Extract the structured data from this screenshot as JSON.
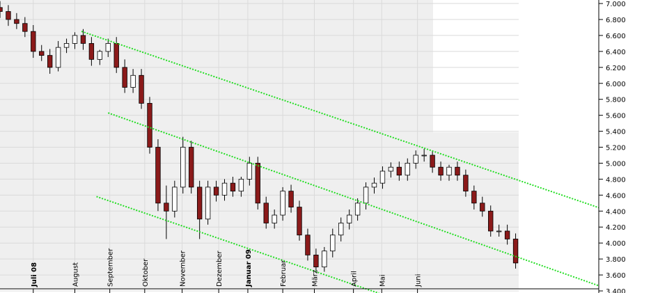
{
  "chart_data": {
    "type": "candlestick",
    "x": [
      0,
      1,
      2,
      3,
      4,
      5,
      6,
      7,
      8,
      9,
      10,
      11,
      12,
      13,
      14,
      15,
      16,
      17,
      18,
      19,
      20,
      21,
      22,
      23,
      24,
      25,
      26,
      27,
      28,
      29,
      30,
      31,
      32,
      33,
      34,
      35,
      36,
      37,
      38,
      39,
      40,
      41,
      42,
      43,
      44,
      45,
      46,
      47,
      48,
      49,
      50,
      51,
      52,
      53,
      54,
      55,
      56,
      57,
      58,
      59,
      60,
      61,
      62
    ],
    "open": [
      6950,
      6900,
      6800,
      6750,
      6650,
      6400,
      6350,
      6200,
      6450,
      6500,
      6600,
      6500,
      6300,
      6400,
      6500,
      6200,
      5950,
      6100,
      5750,
      5200,
      4500,
      4400,
      4700,
      5200,
      4700,
      4300,
      4700,
      4600,
      4750,
      4650,
      4800,
      5000,
      4500,
      4250,
      4350,
      4650,
      4450,
      4100,
      3850,
      3700,
      3900,
      4100,
      4250,
      4350,
      4500,
      4700,
      4750,
      4900,
      4950,
      4850,
      5000,
      5100,
      5100,
      4950,
      4850,
      4950,
      4850,
      4650,
      4500,
      4400,
      4150,
      4150,
      4050
    ],
    "high": [
      7030,
      6980,
      6880,
      6830,
      6730,
      6480,
      6430,
      6530,
      6560,
      6640,
      6680,
      6580,
      6420,
      6560,
      6580,
      6300,
      6180,
      6180,
      5830,
      5300,
      4720,
      4780,
      5330,
      5280,
      4780,
      4780,
      4780,
      4800,
      4830,
      4830,
      5080,
      5080,
      4580,
      4420,
      4700,
      4730,
      4530,
      4180,
      3930,
      3950,
      4180,
      4320,
      4420,
      4560,
      4760,
      4820,
      4960,
      5010,
      5020,
      5060,
      5160,
      5180,
      5160,
      5020,
      4980,
      5020,
      4920,
      4720,
      4580,
      4470,
      4230,
      4230,
      4120
    ],
    "low": [
      6820,
      6720,
      6680,
      6580,
      6320,
      6280,
      6120,
      6150,
      6380,
      6430,
      6420,
      6220,
      6230,
      6330,
      6130,
      5880,
      5880,
      5680,
      5120,
      4400,
      4050,
      4320,
      4620,
      4620,
      4050,
      4230,
      4520,
      4530,
      4580,
      4580,
      4720,
      4420,
      4180,
      4180,
      4280,
      4380,
      4030,
      3780,
      3650,
      3640,
      3820,
      4020,
      4170,
      4280,
      4420,
      4620,
      4680,
      4820,
      4780,
      4780,
      4930,
      5020,
      4880,
      4780,
      4780,
      4780,
      4580,
      4420,
      4330,
      4080,
      4080,
      3980,
      3680
    ],
    "close": [
      6900,
      6800,
      6750,
      6650,
      6400,
      6350,
      6200,
      6450,
      6500,
      6600,
      6500,
      6300,
      6400,
      6500,
      6200,
      5950,
      6100,
      5750,
      5200,
      4500,
      4400,
      4700,
      5200,
      4700,
      4300,
      4700,
      4600,
      4750,
      4650,
      4800,
      5000,
      4500,
      4250,
      4350,
      4650,
      4450,
      4100,
      3850,
      3700,
      3900,
      4100,
      4250,
      4350,
      4500,
      4700,
      4750,
      4900,
      4950,
      4850,
      5000,
      5100,
      5100,
      4950,
      4850,
      4950,
      4850,
      4650,
      4500,
      4400,
      4150,
      4150,
      4050,
      3750
    ],
    "up_color": "#ffffff",
    "down_color": "#8b1a1a",
    "xlim": [
      0,
      72
    ],
    "ylim": [
      3374,
      7044
    ],
    "xticks": [
      {
        "value": 4.0,
        "label": "Juli 08"
      },
      {
        "value": 9.0,
        "label": "August"
      },
      {
        "value": 13.2,
        "label": "September"
      },
      {
        "value": 17.4,
        "label": "Oktober"
      },
      {
        "value": 21.9,
        "label": "November"
      },
      {
        "value": 26.3,
        "label": "Dezember"
      },
      {
        "value": 29.8,
        "label": "Januar 09"
      },
      {
        "value": 34.0,
        "label": "Februar"
      },
      {
        "value": 37.8,
        "label": "März"
      },
      {
        "value": 42.5,
        "label": "April"
      },
      {
        "value": 45.9,
        "label": "Mai"
      },
      {
        "value": 50.2,
        "label": "Juni"
      }
    ],
    "yticks": [
      {
        "value": 3400,
        "label": "3.400"
      },
      {
        "value": 3600,
        "label": "3.600"
      },
      {
        "value": 3800,
        "label": "3.800"
      },
      {
        "value": 4000,
        "label": "4.000"
      },
      {
        "value": 4200,
        "label": "4.200"
      },
      {
        "value": 4400,
        "label": "4.400"
      },
      {
        "value": 4600,
        "label": "4.600"
      },
      {
        "value": 4800,
        "label": "4.800"
      },
      {
        "value": 5000,
        "label": "5.000"
      },
      {
        "value": 5200,
        "label": "5.200"
      },
      {
        "value": 5400,
        "label": "5.400"
      },
      {
        "value": 5600,
        "label": "5.600"
      },
      {
        "value": 5800,
        "label": "5.800"
      },
      {
        "value": 6000,
        "label": "6.000"
      },
      {
        "value": 6200,
        "label": "6.200"
      },
      {
        "value": 6400,
        "label": "6.400"
      },
      {
        "value": 6600,
        "label": "6.600"
      },
      {
        "value": 6800,
        "label": "6.800"
      },
      {
        "value": 7000,
        "label": "7.000"
      }
    ],
    "grid": true,
    "trend_lines": [
      {
        "color": "#22dd22",
        "x": [
          9.8,
          72
        ],
        "y": [
          6651,
          4443
        ]
      },
      {
        "color": "#22dd22",
        "x": [
          13.0,
          72
        ],
        "y": [
          5630,
          3465
        ]
      },
      {
        "color": "#22dd22",
        "x": [
          11.6,
          45.6
        ],
        "y": [
          4582,
          3369
        ]
      }
    ]
  }
}
